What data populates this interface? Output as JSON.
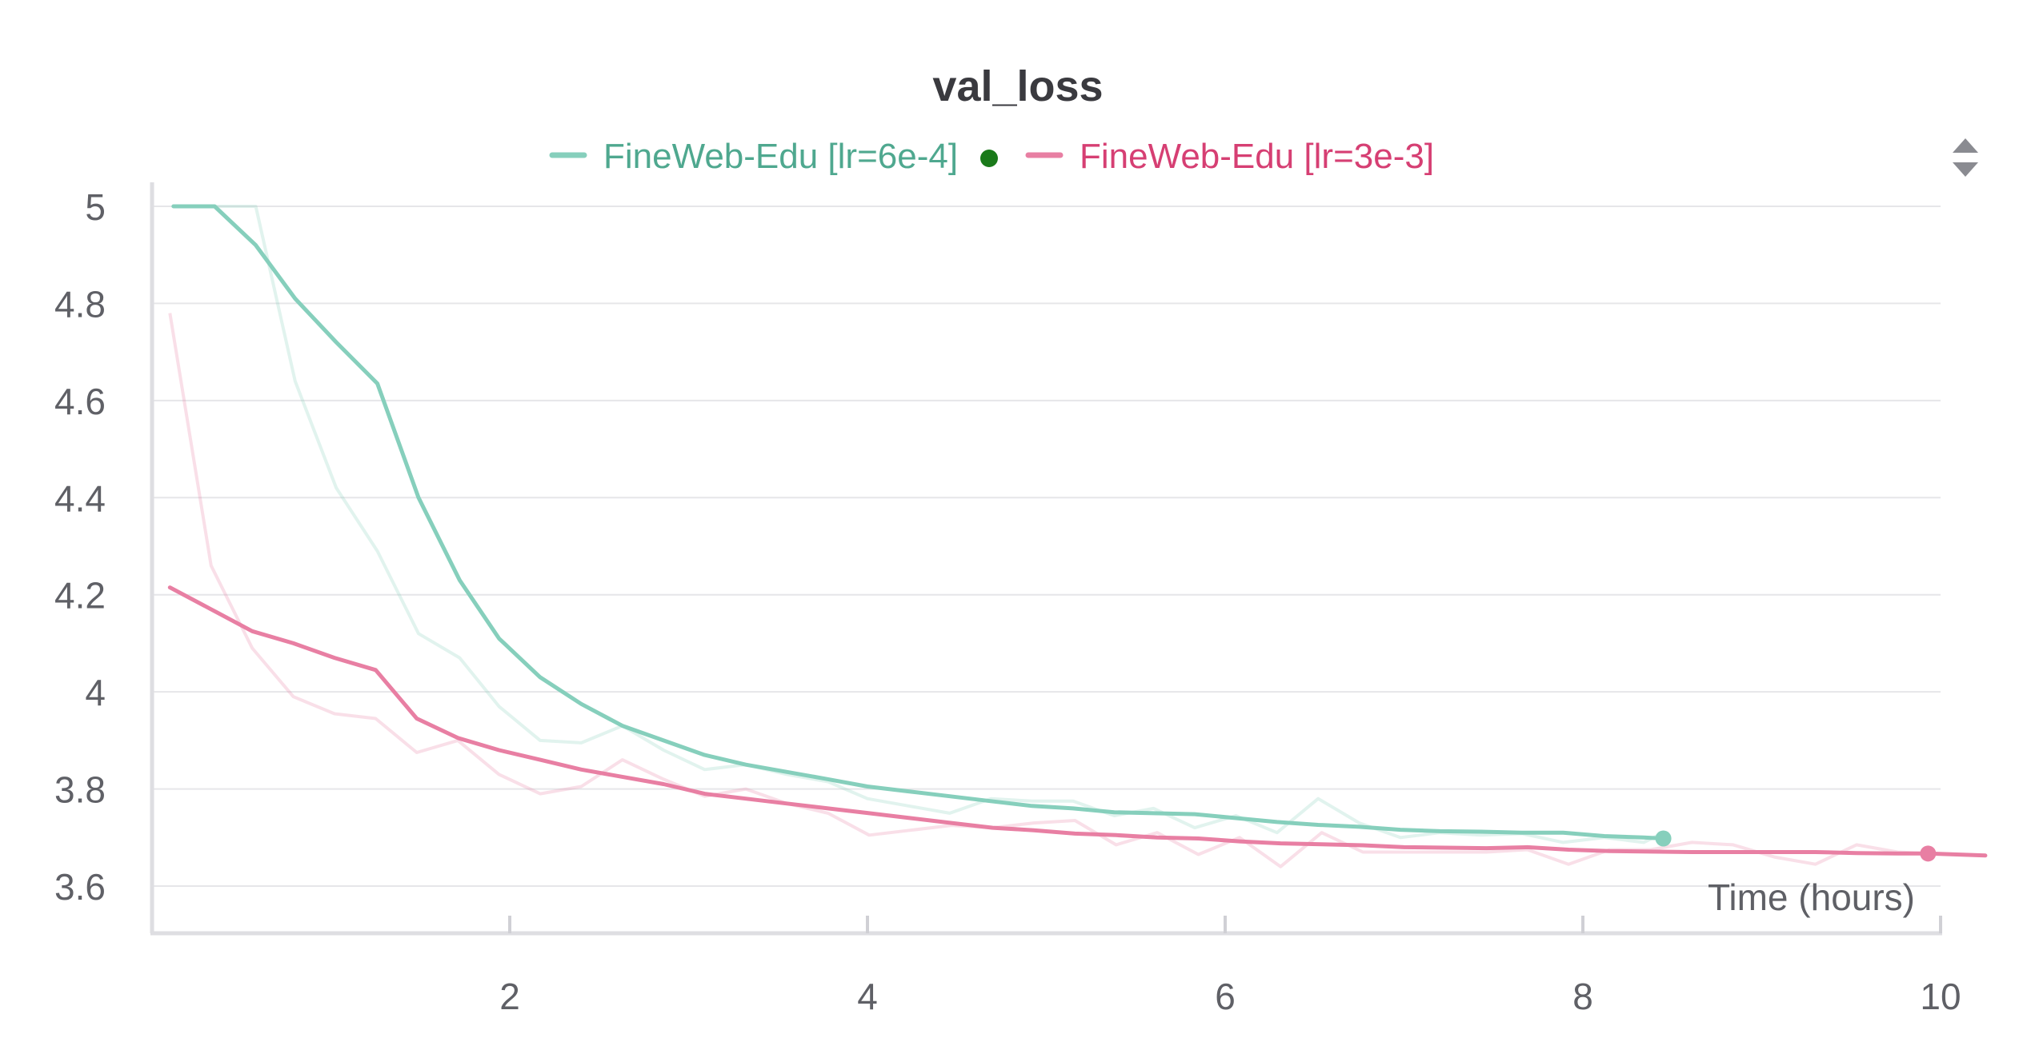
{
  "chart_data": {
    "type": "line",
    "title": "val_loss",
    "xlabel": "Time (hours)",
    "ylabel": "",
    "xlim": [
      0,
      10
    ],
    "ylim": [
      3.6,
      5.0
    ],
    "x_ticks": [
      "2",
      "4",
      "6",
      "8",
      "10"
    ],
    "y_ticks": [
      "5",
      "4.8",
      "4.6",
      "4.4",
      "4.2",
      "4",
      "3.8",
      "3.6"
    ],
    "grid": true,
    "legend_position": "top-center",
    "series": [
      {
        "name": "FineWeb-Edu [lr=6e-4]",
        "color": "#86cfbc",
        "legend_text_color": "#4fa88f",
        "active_dot_color": "#1a7a1a",
        "smoothed": [
          [
            0.12,
            5.0
          ],
          [
            0.35,
            5.0
          ],
          [
            0.58,
            4.92
          ],
          [
            0.8,
            4.81
          ],
          [
            1.03,
            4.72
          ],
          [
            1.26,
            4.635
          ],
          [
            1.49,
            4.4
          ],
          [
            1.72,
            4.23
          ],
          [
            1.94,
            4.11
          ],
          [
            2.17,
            4.03
          ],
          [
            2.4,
            3.975
          ],
          [
            2.63,
            3.93
          ],
          [
            2.86,
            3.9
          ],
          [
            3.09,
            3.87
          ],
          [
            3.32,
            3.85
          ],
          [
            3.55,
            3.835
          ],
          [
            3.78,
            3.82
          ],
          [
            4.0,
            3.805
          ],
          [
            4.23,
            3.795
          ],
          [
            4.46,
            3.785
          ],
          [
            4.69,
            3.775
          ],
          [
            4.92,
            3.765
          ],
          [
            5.15,
            3.76
          ],
          [
            5.38,
            3.752
          ],
          [
            5.6,
            3.75
          ],
          [
            5.83,
            3.748
          ],
          [
            6.06,
            3.74
          ],
          [
            6.29,
            3.732
          ],
          [
            6.52,
            3.726
          ],
          [
            6.75,
            3.722
          ],
          [
            6.98,
            3.716
          ],
          [
            7.2,
            3.713
          ],
          [
            7.43,
            3.712
          ],
          [
            7.66,
            3.71
          ],
          [
            7.89,
            3.71
          ],
          [
            8.12,
            3.703
          ],
          [
            8.34,
            3.7
          ],
          [
            8.45,
            3.698
          ]
        ],
        "raw": [
          [
            0.12,
            5.0
          ],
          [
            0.35,
            5.0
          ],
          [
            0.58,
            5.0
          ],
          [
            0.8,
            4.64
          ],
          [
            1.03,
            4.42
          ],
          [
            1.26,
            4.29
          ],
          [
            1.49,
            4.12
          ],
          [
            1.72,
            4.07
          ],
          [
            1.94,
            3.97
          ],
          [
            2.17,
            3.9
          ],
          [
            2.4,
            3.895
          ],
          [
            2.63,
            3.93
          ],
          [
            2.86,
            3.88
          ],
          [
            3.09,
            3.84
          ],
          [
            3.32,
            3.85
          ],
          [
            3.55,
            3.83
          ],
          [
            3.78,
            3.815
          ],
          [
            4.0,
            3.78
          ],
          [
            4.23,
            3.765
          ],
          [
            4.46,
            3.75
          ],
          [
            4.69,
            3.78
          ],
          [
            4.92,
            3.775
          ],
          [
            5.15,
            3.775
          ],
          [
            5.38,
            3.745
          ],
          [
            5.6,
            3.76
          ],
          [
            5.83,
            3.72
          ],
          [
            6.06,
            3.745
          ],
          [
            6.29,
            3.71
          ],
          [
            6.52,
            3.78
          ],
          [
            6.75,
            3.73
          ],
          [
            6.98,
            3.7
          ],
          [
            7.2,
            3.71
          ],
          [
            7.43,
            3.705
          ],
          [
            7.66,
            3.708
          ],
          [
            7.89,
            3.69
          ],
          [
            8.12,
            3.7
          ],
          [
            8.34,
            3.69
          ],
          [
            8.45,
            3.71
          ]
        ]
      },
      {
        "name": "FineWeb-Edu [lr=3e-3]",
        "color": "#e87fa3",
        "legend_text_color": "#d63f73",
        "smoothed": [
          [
            0.1,
            4.215
          ],
          [
            0.33,
            4.17
          ],
          [
            0.56,
            4.125
          ],
          [
            0.79,
            4.1
          ],
          [
            1.02,
            4.07
          ],
          [
            1.25,
            4.045
          ],
          [
            1.48,
            3.945
          ],
          [
            1.71,
            3.905
          ],
          [
            1.94,
            3.88
          ],
          [
            2.17,
            3.86
          ],
          [
            2.4,
            3.84
          ],
          [
            2.63,
            3.825
          ],
          [
            2.86,
            3.81
          ],
          [
            3.09,
            3.79
          ],
          [
            3.32,
            3.78
          ],
          [
            3.55,
            3.77
          ],
          [
            3.78,
            3.76
          ],
          [
            4.01,
            3.75
          ],
          [
            4.24,
            3.74
          ],
          [
            4.47,
            3.73
          ],
          [
            4.7,
            3.72
          ],
          [
            4.93,
            3.715
          ],
          [
            5.16,
            3.708
          ],
          [
            5.39,
            3.705
          ],
          [
            5.62,
            3.7
          ],
          [
            5.85,
            3.698
          ],
          [
            6.08,
            3.692
          ],
          [
            6.31,
            3.688
          ],
          [
            6.54,
            3.686
          ],
          [
            6.77,
            3.684
          ],
          [
            7.0,
            3.68
          ],
          [
            7.23,
            3.679
          ],
          [
            7.46,
            3.678
          ],
          [
            7.69,
            3.68
          ],
          [
            7.92,
            3.675
          ],
          [
            8.15,
            3.672
          ],
          [
            8.38,
            3.671
          ],
          [
            8.61,
            3.67
          ],
          [
            8.84,
            3.67
          ],
          [
            9.07,
            3.67
          ],
          [
            9.3,
            3.67
          ],
          [
            9.53,
            3.668
          ],
          [
            9.76,
            3.667
          ],
          [
            9.93,
            3.667
          ],
          [
            10.25,
            3.663
          ]
        ],
        "raw": [
          [
            0.1,
            4.78
          ],
          [
            0.33,
            4.26
          ],
          [
            0.56,
            4.09
          ],
          [
            0.79,
            3.99
          ],
          [
            1.02,
            3.955
          ],
          [
            1.25,
            3.945
          ],
          [
            1.48,
            3.875
          ],
          [
            1.71,
            3.9
          ],
          [
            1.94,
            3.83
          ],
          [
            2.17,
            3.79
          ],
          [
            2.4,
            3.805
          ],
          [
            2.63,
            3.86
          ],
          [
            2.86,
            3.82
          ],
          [
            3.09,
            3.785
          ],
          [
            3.32,
            3.8
          ],
          [
            3.55,
            3.77
          ],
          [
            3.78,
            3.75
          ],
          [
            4.01,
            3.705
          ],
          [
            4.24,
            3.715
          ],
          [
            4.47,
            3.725
          ],
          [
            4.7,
            3.72
          ],
          [
            4.93,
            3.73
          ],
          [
            5.16,
            3.735
          ],
          [
            5.39,
            3.685
          ],
          [
            5.62,
            3.71
          ],
          [
            5.85,
            3.665
          ],
          [
            6.08,
            3.7
          ],
          [
            6.31,
            3.64
          ],
          [
            6.54,
            3.71
          ],
          [
            6.77,
            3.67
          ],
          [
            7.0,
            3.67
          ],
          [
            7.23,
            3.67
          ],
          [
            7.46,
            3.67
          ],
          [
            7.69,
            3.675
          ],
          [
            7.92,
            3.645
          ],
          [
            8.15,
            3.675
          ],
          [
            8.38,
            3.675
          ],
          [
            8.61,
            3.69
          ],
          [
            8.84,
            3.685
          ],
          [
            9.07,
            3.66
          ],
          [
            9.3,
            3.645
          ],
          [
            9.53,
            3.685
          ],
          [
            9.76,
            3.67
          ],
          [
            9.93,
            3.667
          ],
          [
            10.25,
            3.663
          ]
        ]
      }
    ]
  }
}
